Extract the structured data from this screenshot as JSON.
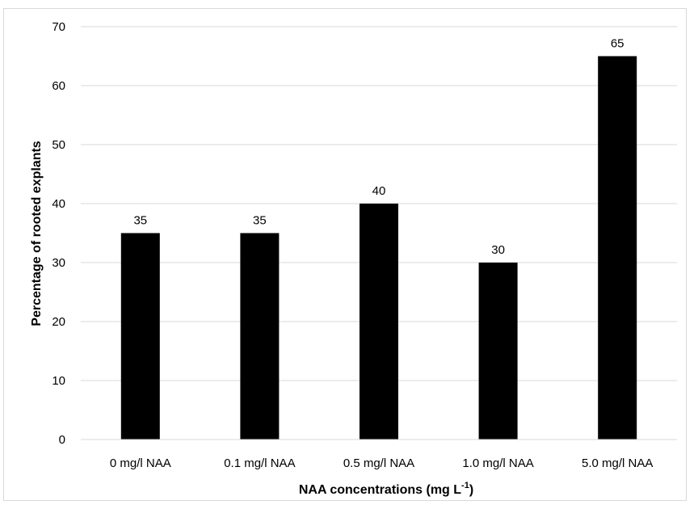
{
  "chart_data": {
    "type": "bar",
    "categories": [
      "0 mg/l NAA",
      "0.1 mg/l NAA",
      "0.5 mg/l NAA",
      "1.0 mg/l NAA",
      "5.0 mg/l NAA"
    ],
    "values": [
      35,
      35,
      40,
      30,
      65
    ],
    "data_labels": [
      "35",
      "35",
      "40",
      "30",
      "65"
    ],
    "xlabel": "NAA concentrations (mg L",
    "xlabel_superscript": "-1",
    "xlabel_suffix": ")",
    "ylabel": "Percentage of rooted explants",
    "ylim": [
      0,
      70
    ],
    "yticks": [
      0,
      10,
      20,
      30,
      40,
      50,
      60,
      70
    ],
    "grid": true,
    "bar_color": "#000000",
    "grid_color": "#d9d9d9"
  }
}
